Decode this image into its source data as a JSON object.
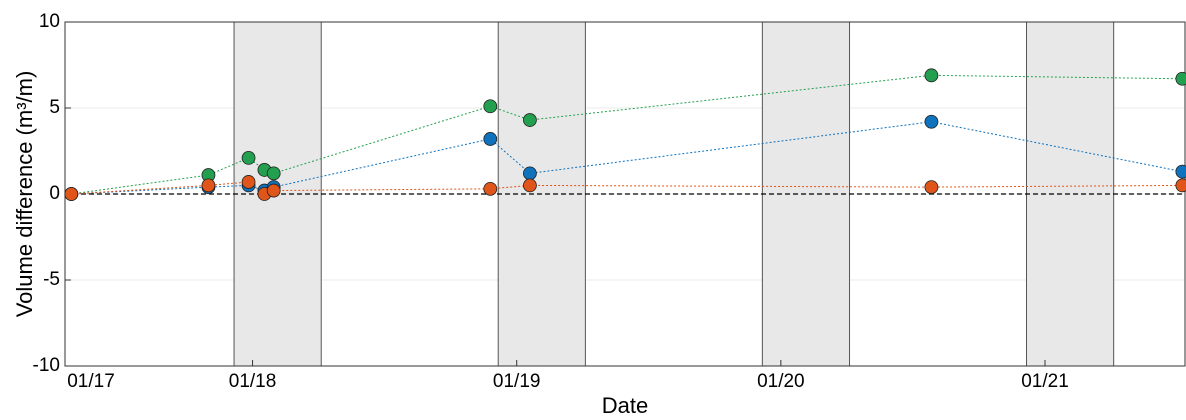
{
  "chart_data": {
    "type": "scatter",
    "x_label": "Date",
    "y_label": "Volume difference (m³/m)",
    "xlim": [
      17.29,
      21.53
    ],
    "xticks": [
      {
        "value": 17.29,
        "label": "01/17"
      },
      {
        "value": 18,
        "label": "01/18"
      },
      {
        "value": 19,
        "label": "01/19"
      },
      {
        "value": 20,
        "label": "01/20"
      },
      {
        "value": 21,
        "label": "01/21"
      }
    ],
    "ylim": [
      -10,
      10
    ],
    "yticks": [
      -10,
      -5,
      0,
      5,
      10
    ],
    "grid": true,
    "shaded_intervals": [
      [
        17.93,
        18.26
      ],
      [
        18.93,
        19.26
      ],
      [
        19.93,
        20.26
      ],
      [
        20.93,
        21.26
      ]
    ],
    "shade_color": "#e8e8e8",
    "reference_line": 0,
    "series": [
      {
        "color": "#23a04f",
        "x": [
          17.314,
          17.833,
          17.985,
          18.045,
          18.08,
          18.9,
          19.05,
          20.57,
          21.52
        ],
        "values": [
          0,
          1.1,
          2.1,
          1.4,
          1.2,
          5.1,
          4.3,
          6.9,
          6.7
        ]
      },
      {
        "color": "#0f72bd",
        "x": [
          17.314,
          17.833,
          17.985,
          18.045,
          18.08,
          18.9,
          19.05,
          20.57,
          21.52
        ],
        "values": [
          0,
          0.4,
          0.5,
          0.2,
          0.4,
          3.2,
          1.2,
          4.2,
          1.3
        ]
      },
      {
        "color": "#e0561a",
        "x": [
          17.314,
          17.833,
          17.985,
          18.045,
          18.08,
          18.9,
          19.05,
          20.57,
          21.52
        ],
        "values": [
          0,
          0.5,
          0.7,
          0.0,
          0.2,
          0.3,
          0.5,
          0.4,
          0.5
        ]
      }
    ]
  }
}
